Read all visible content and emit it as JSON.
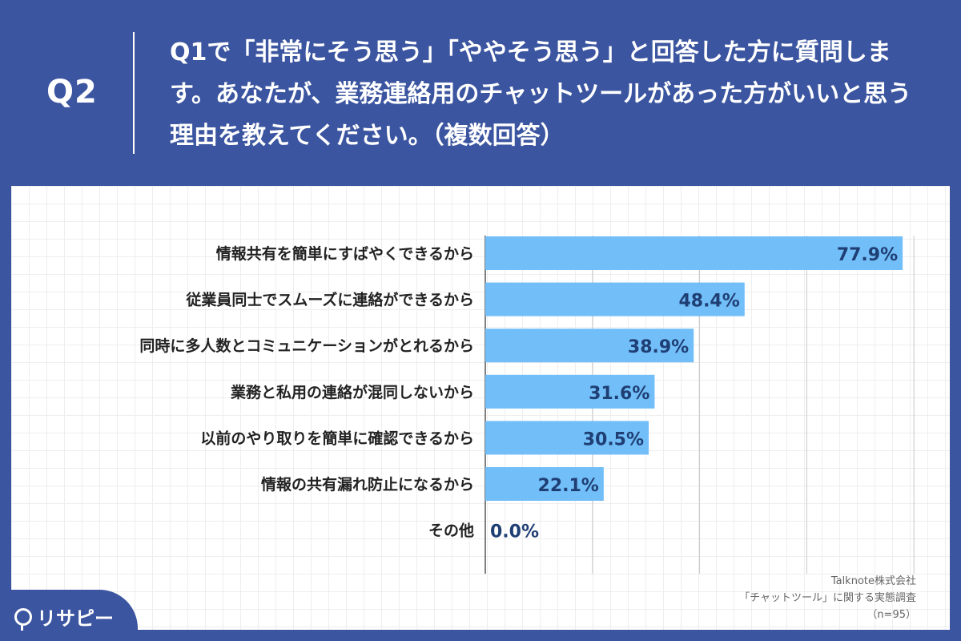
{
  "header": {
    "q_label": "Q2",
    "question": "Q1で「非常にそう思う」「ややそう思う」と回答した方に質問します。あなたが、業務連絡用のチャットツールがあった方がいいと思う理由を教えてください。（複数回答）"
  },
  "source": {
    "line1": "Talknote株式会社",
    "line2": "「チャットツール」に関する実態調査",
    "line3": "（n=95）"
  },
  "logo": {
    "text": "リサピー"
  },
  "colors": {
    "background": "#3b55a0",
    "bar": "#72bef8",
    "value_text": "#1f3f74"
  },
  "chart_data": {
    "type": "bar",
    "orientation": "horizontal",
    "categories": [
      "情報共有を簡単にすばやくできるから",
      "従業員同士でスムーズに連絡ができるから",
      "同時に多人数とコミュニケーションがとれるから",
      "業務と私用の連絡が混同しないから",
      "以前のやり取りを簡単に確認できるから",
      "情報の共有漏れ防止になるから",
      "その他"
    ],
    "values": [
      77.9,
      48.4,
      38.9,
      31.6,
      30.5,
      22.1,
      0.0
    ],
    "value_labels": [
      "77.9%",
      "48.4%",
      "38.9%",
      "31.6%",
      "30.5%",
      "22.1%",
      "0.0%"
    ],
    "xlim": [
      0,
      80
    ],
    "grid": true
  }
}
